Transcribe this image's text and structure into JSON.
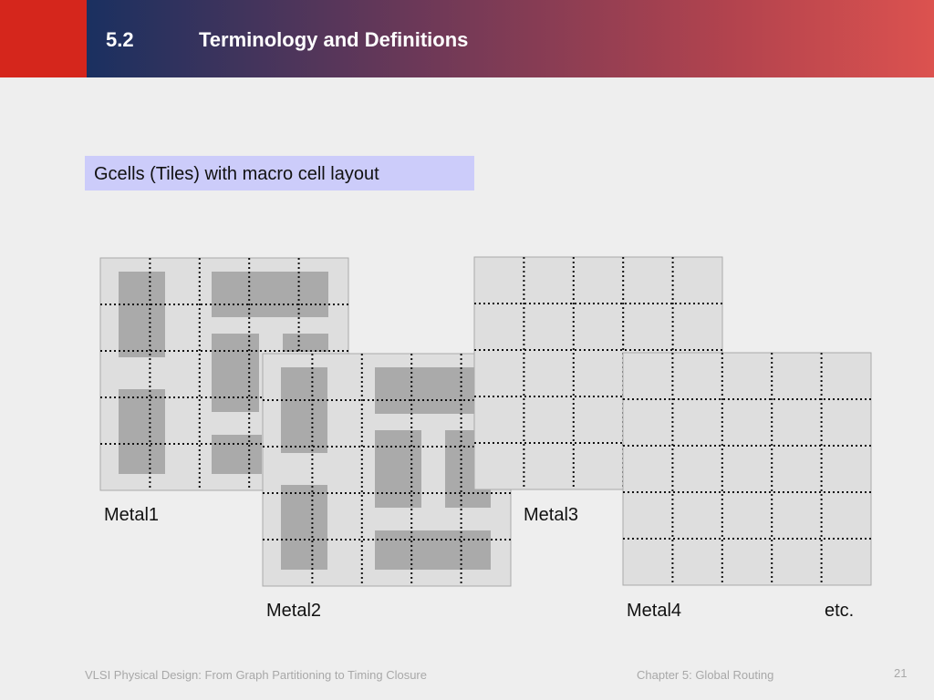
{
  "header": {
    "section": "5.2",
    "title": "Terminology and Definitions"
  },
  "subtitle": "Gcells (Tiles) with macro cell layout",
  "layers": {
    "metal1": "Metal1",
    "metal2": "Metal2",
    "metal3": "Metal3",
    "metal4": "Metal4",
    "more": "etc."
  },
  "footer": {
    "book": "VLSI Physical Design: From Graph Partitioning to Timing Closure",
    "chapter": "Chapter 5: Global Routing",
    "page": "21"
  }
}
